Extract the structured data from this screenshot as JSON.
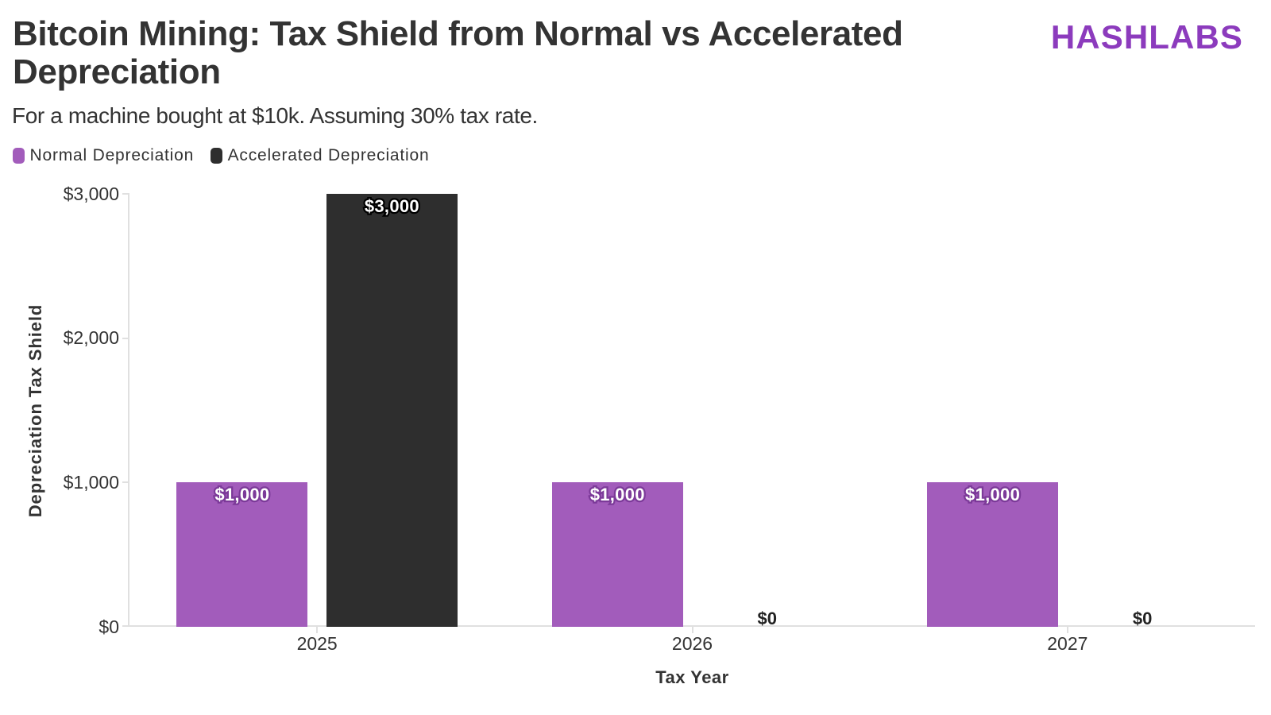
{
  "header": {
    "title": "Bitcoin Mining: Tax Shield from Normal vs Accelerated Depreciation",
    "subtitle": "For a machine bought at $10k. Assuming 30% tax rate.",
    "logo": "HASHLABS"
  },
  "colors": {
    "title_text": "#333333",
    "logo_purple": "#8c3bbd",
    "axis_gray": "#e0e0e0",
    "normal_purple": "#a25cbb",
    "accelerated_black": "#2e2e2e"
  },
  "chart_data": {
    "type": "bar",
    "title": "Bitcoin Mining: Tax Shield from Normal vs Accelerated Depreciation",
    "subtitle": "For a machine bought at $10k. Assuming 30% tax rate.",
    "categories": [
      "2025",
      "2026",
      "2027"
    ],
    "series": [
      {
        "name": "Normal Depreciation",
        "color": "#a25cbb",
        "label_outline": "#7c3a99",
        "values": [
          1000,
          1000,
          1000
        ],
        "labels": [
          "$1,000",
          "$1,000",
          "$1,000"
        ]
      },
      {
        "name": "Accelerated Depreciation",
        "color": "#2e2e2e",
        "label_outline": "#000000",
        "values": [
          3000,
          0,
          0
        ],
        "labels": [
          "$3,000",
          "$0",
          "$0"
        ]
      }
    ],
    "xlabel": "Tax Year",
    "ylabel": "Depreciation Tax Shield",
    "ylim": [
      0,
      3000
    ],
    "yticks": [
      0,
      1000,
      2000,
      3000
    ],
    "ytick_labels": [
      "$0",
      "$1,000",
      "$2,000",
      "$3,000"
    ],
    "grid": false,
    "legend_position": "top-left"
  }
}
